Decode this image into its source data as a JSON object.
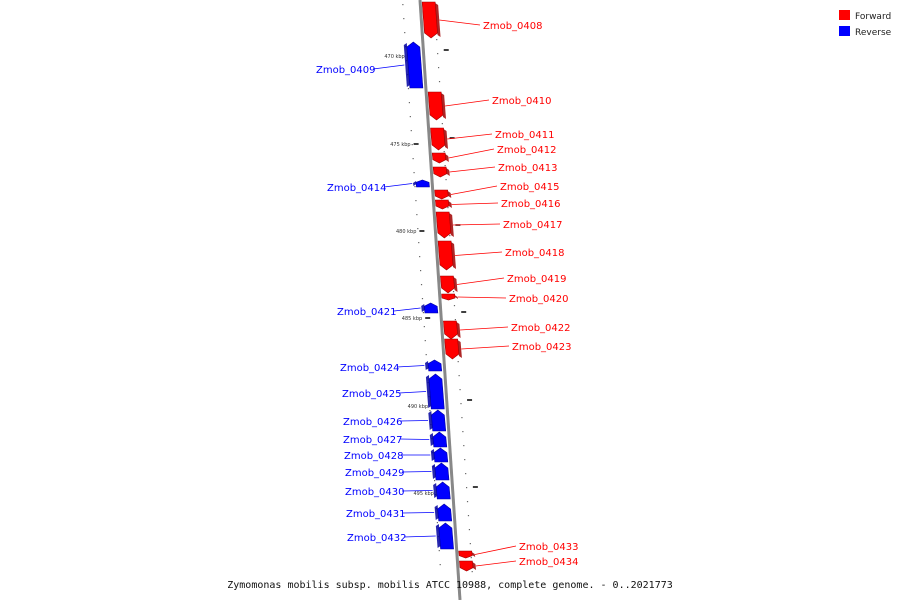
{
  "caption": "Zymomonas mobilis subsp. mobilis ATCC 10988, complete genome. - 0..2021773",
  "legend": [
    {
      "label": "Forward",
      "color": "#ff0000"
    },
    {
      "label": "Reverse",
      "color": "#0000ff"
    }
  ],
  "colors": {
    "forward": "#ff0000",
    "reverse": "#0000ff",
    "backbone": "#888888"
  },
  "ticks": [
    {
      "label": "470 kbp"
    },
    {
      "label": "475 kbp"
    },
    {
      "label": "480 kbp"
    },
    {
      "label": "485 kbp"
    },
    {
      "label": "490 kbp"
    },
    {
      "label": "495 kbp"
    }
  ],
  "genes": [
    {
      "name": "Zmob_0408",
      "strand": "forward"
    },
    {
      "name": "Zmob_0409",
      "strand": "reverse"
    },
    {
      "name": "Zmob_0410",
      "strand": "forward"
    },
    {
      "name": "Zmob_0411",
      "strand": "forward"
    },
    {
      "name": "Zmob_0412",
      "strand": "forward"
    },
    {
      "name": "Zmob_0413",
      "strand": "forward"
    },
    {
      "name": "Zmob_0414",
      "strand": "reverse"
    },
    {
      "name": "Zmob_0415",
      "strand": "forward"
    },
    {
      "name": "Zmob_0416",
      "strand": "forward"
    },
    {
      "name": "Zmob_0417",
      "strand": "forward"
    },
    {
      "name": "Zmob_0418",
      "strand": "forward"
    },
    {
      "name": "Zmob_0419",
      "strand": "forward"
    },
    {
      "name": "Zmob_0420",
      "strand": "forward"
    },
    {
      "name": "Zmob_0421",
      "strand": "reverse"
    },
    {
      "name": "Zmob_0422",
      "strand": "forward"
    },
    {
      "name": "Zmob_0423",
      "strand": "forward"
    },
    {
      "name": "Zmob_0424",
      "strand": "reverse"
    },
    {
      "name": "Zmob_0425",
      "strand": "reverse"
    },
    {
      "name": "Zmob_0426",
      "strand": "reverse"
    },
    {
      "name": "Zmob_0427",
      "strand": "reverse"
    },
    {
      "name": "Zmob_0428",
      "strand": "reverse"
    },
    {
      "name": "Zmob_0429",
      "strand": "reverse"
    },
    {
      "name": "Zmob_0430",
      "strand": "reverse"
    },
    {
      "name": "Zmob_0431",
      "strand": "reverse"
    },
    {
      "name": "Zmob_0432",
      "strand": "reverse"
    },
    {
      "name": "Zmob_0433",
      "strand": "forward"
    },
    {
      "name": "Zmob_0434",
      "strand": "forward"
    }
  ]
}
